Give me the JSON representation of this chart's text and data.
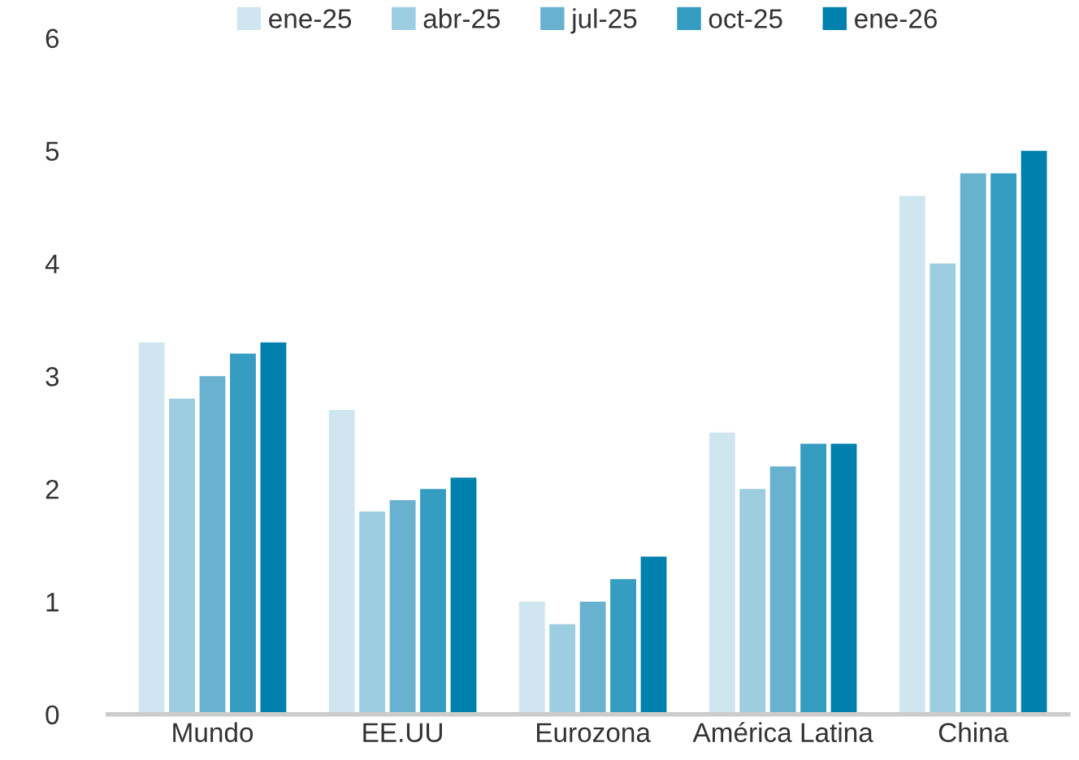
{
  "chart_data": {
    "type": "bar",
    "categories": [
      "Mundo",
      "EE.UU",
      "Eurozona",
      "América Latina",
      "China"
    ],
    "series": [
      {
        "name": "ene-25",
        "color": "#cfe6f0",
        "values": [
          3.3,
          2.7,
          1.0,
          2.5,
          4.6
        ]
      },
      {
        "name": "abr-25",
        "color": "#9ccde0",
        "values": [
          2.8,
          1.8,
          0.8,
          2.0,
          4.0
        ]
      },
      {
        "name": "jul-25",
        "color": "#68b2d0",
        "values": [
          3.0,
          1.9,
          1.0,
          2.2,
          4.8
        ]
      },
      {
        "name": "oct-25",
        "color": "#359cc2",
        "values": [
          3.2,
          2.0,
          1.2,
          2.4,
          4.8
        ]
      },
      {
        "name": "ene-26",
        "color": "#0081ad",
        "values": [
          3.3,
          2.1,
          1.4,
          2.4,
          5.0
        ]
      }
    ],
    "ylim": [
      0,
      6
    ],
    "yticks": [
      0,
      1,
      2,
      3,
      4,
      5,
      6
    ],
    "grid": false,
    "legend": "top"
  }
}
